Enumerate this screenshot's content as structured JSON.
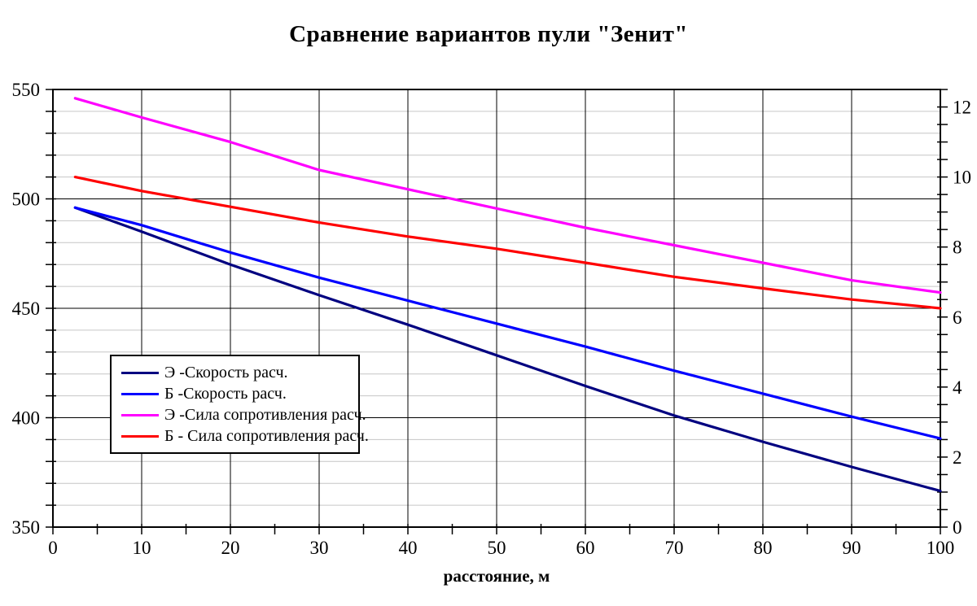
{
  "chart_data": {
    "type": "line",
    "title": "Сравнение вариантов пули \"Зенит\"",
    "xlabel": "расстояние, м",
    "legend_position": "inside-left",
    "axes": {
      "x": {
        "min": 0,
        "max": 100,
        "label_step": 10,
        "tick_step": 5,
        "grid_step": 10
      },
      "y_left": {
        "min": 350,
        "max": 550,
        "label_step": 50,
        "minor_step": 10
      },
      "y_right": {
        "min": 0,
        "max": 12.5,
        "label_step": 2,
        "tick_step": 0.5
      }
    },
    "grid": {
      "vertical_color": "#000000",
      "minor_horizontal_color": "#c6c6c6",
      "major_horizontal_color": "#000000",
      "axis_color": "#000000"
    },
    "x": [
      2.5,
      10,
      20,
      30,
      40,
      50,
      60,
      70,
      80,
      90,
      100
    ],
    "series": [
      {
        "name": "Э -Скорость расч.",
        "axis": "left",
        "color": "#000080",
        "values": [
          496,
          485,
          470,
          456,
          442.5,
          428.5,
          414.5,
          401,
          389,
          377.5,
          366.5
        ]
      },
      {
        "name": "Б -Скорость расч.",
        "axis": "left",
        "color": "#0000ff",
        "values": [
          496,
          488,
          475.5,
          464,
          453.5,
          443,
          432.5,
          421.5,
          411,
          400.5,
          390.5
        ]
      },
      {
        "name": "Э -Сила сопротивления расч.",
        "axis": "right",
        "color": "#ff00ff",
        "values": [
          12.25,
          11.7,
          11.0,
          10.2,
          9.65,
          9.1,
          8.55,
          8.05,
          7.55,
          7.05,
          6.7
        ]
      },
      {
        "name": "Б - Сила сопротивления расч.",
        "axis": "right",
        "color": "#ff0000",
        "values": [
          10.0,
          9.6,
          9.15,
          8.7,
          8.3,
          7.95,
          7.55,
          7.15,
          6.82,
          6.5,
          6.25
        ]
      }
    ]
  }
}
